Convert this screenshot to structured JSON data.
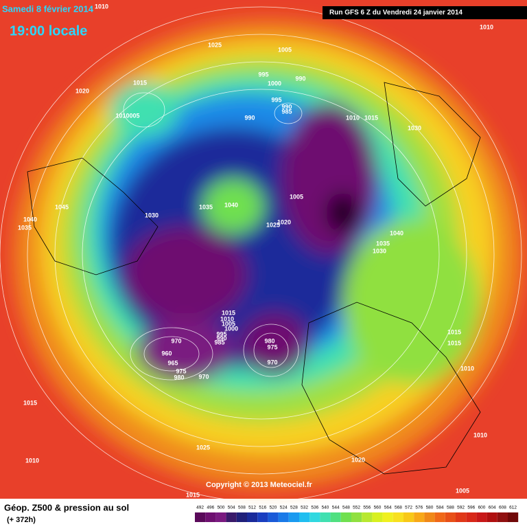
{
  "header": {
    "date": "Samedi 8 février 2014",
    "time": "19:00 locale",
    "run": "Run GFS 6 Z du Vendredi 24 janvier 2014"
  },
  "isobar_labels": [
    "1010",
    "1025",
    "1005",
    "1010",
    "1015",
    "1020",
    "995",
    "1000",
    "990",
    "995",
    "990",
    "985",
    "990",
    "1010005",
    "1010",
    "1015",
    "1030",
    "1005",
    "1045",
    "1035",
    "1040",
    "1030",
    "1040",
    "1035",
    "1025",
    "1020",
    "1035",
    "1040",
    "1030",
    "1015",
    "1010",
    "1005",
    "1000",
    "995",
    "990",
    "985",
    "970",
    "960",
    "965",
    "975",
    "980",
    "970",
    "980",
    "975",
    "970",
    "1015",
    "1015",
    "1010",
    "1015",
    "1025",
    "1020",
    "1010",
    "1010",
    "1005",
    "1015"
  ],
  "copyright": "Copyright © 2013 Meteociel.fr",
  "footer": {
    "title": "Géop. Z500 & pression au sol",
    "lead": "(+ 372h)"
  },
  "legend": {
    "labels": [
      "492",
      "496",
      "500",
      "504",
      "508",
      "512",
      "516",
      "520",
      "524",
      "528",
      "532",
      "536",
      "540",
      "544",
      "548",
      "552",
      "556",
      "560",
      "564",
      "568",
      "572",
      "576",
      "580",
      "584",
      "588",
      "592",
      "596",
      "600",
      "604",
      "608",
      "612"
    ],
    "colors": [
      "#5a0a5a",
      "#6e1070",
      "#7a1a80",
      "#3a1a6a",
      "#20207a",
      "#1a2a9a",
      "#1a3ec0",
      "#1a5ad8",
      "#1a7ae8",
      "#1a9af0",
      "#20bef0",
      "#30d8e0",
      "#40e0b0",
      "#50e080",
      "#70e050",
      "#90e040",
      "#b8e830",
      "#d8f020",
      "#f0f020",
      "#f8e020",
      "#f8c818",
      "#f8a818",
      "#f08818",
      "#f06818",
      "#e85018",
      "#e03818",
      "#d82818",
      "#c81818",
      "#b01010",
      "#901010",
      "#700808"
    ]
  }
}
